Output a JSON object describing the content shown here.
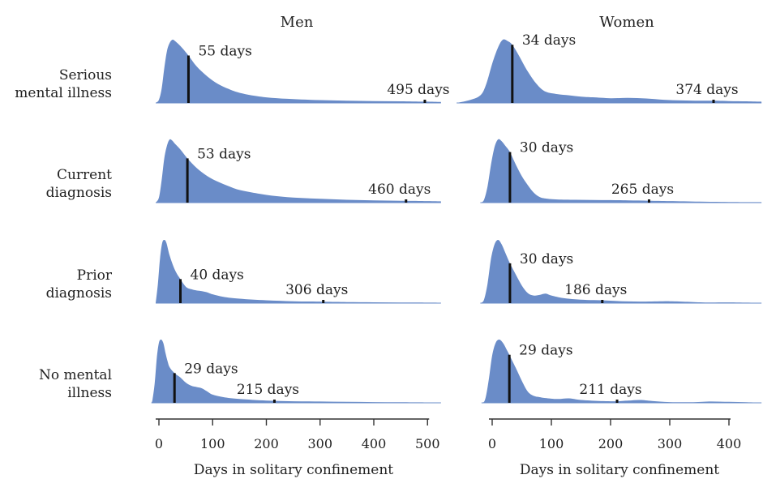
{
  "chart_data": {
    "type": "area",
    "rows": [
      "Serious\nmental illness",
      "Current\ndiagnosis",
      "Prior\ndiagnosis",
      "No mental\nillness"
    ],
    "fill_color": "#6a8cc8",
    "marker_color": "#111111",
    "panels": [
      {
        "title": "Men",
        "xlabel": "Days in solitary confinement",
        "xlim": [
          -14,
          525
        ],
        "ticks": [
          0,
          100,
          200,
          300,
          400,
          500
        ],
        "tick_labels": [
          "0",
          "100",
          "200",
          "300",
          "400",
          "500"
        ],
        "series": [
          {
            "row": "Serious\nmental illness",
            "median": 55,
            "median_label": "55 days",
            "tail": 495,
            "tail_label": "495 days",
            "density": [
              [
                -6,
                0
              ],
              [
                0,
                0.05
              ],
              [
                5,
                0.22
              ],
              [
                10,
                0.55
              ],
              [
                15,
                0.82
              ],
              [
                20,
                0.95
              ],
              [
                25,
                1.0
              ],
              [
                30,
                0.98
              ],
              [
                40,
                0.9
              ],
              [
                55,
                0.75
              ],
              [
                70,
                0.58
              ],
              [
                90,
                0.42
              ],
              [
                110,
                0.3
              ],
              [
                130,
                0.22
              ],
              [
                150,
                0.16
              ],
              [
                180,
                0.11
              ],
              [
                210,
                0.08
              ],
              [
                250,
                0.06
              ],
              [
                300,
                0.045
              ],
              [
                350,
                0.035
              ],
              [
                400,
                0.03
              ],
              [
                450,
                0.025
              ],
              [
                500,
                0.02
              ],
              [
                525,
                0.015
              ]
            ]
          },
          {
            "row": "Current\ndiagnosis",
            "median": 53,
            "median_label": "53 days",
            "tail": 460,
            "tail_label": "460 days",
            "density": [
              [
                -6,
                0
              ],
              [
                0,
                0.08
              ],
              [
                5,
                0.35
              ],
              [
                10,
                0.7
              ],
              [
                15,
                0.9
              ],
              [
                20,
                1.0
              ],
              [
                25,
                0.98
              ],
              [
                30,
                0.93
              ],
              [
                40,
                0.84
              ],
              [
                53,
                0.7
              ],
              [
                70,
                0.55
              ],
              [
                90,
                0.42
              ],
              [
                110,
                0.33
              ],
              [
                130,
                0.26
              ],
              [
                150,
                0.2
              ],
              [
                180,
                0.15
              ],
              [
                210,
                0.11
              ],
              [
                250,
                0.08
              ],
              [
                300,
                0.06
              ],
              [
                350,
                0.045
              ],
              [
                400,
                0.035
              ],
              [
                450,
                0.03
              ],
              [
                500,
                0.025
              ],
              [
                525,
                0.02
              ]
            ]
          },
          {
            "row": "Prior\ndiagnosis",
            "median": 40,
            "median_label": "40 days",
            "tail": 306,
            "tail_label": "306 days",
            "density": [
              [
                -6,
                0
              ],
              [
                -2,
                0.3
              ],
              [
                2,
                0.7
              ],
              [
                6,
                0.95
              ],
              [
                10,
                1.0
              ],
              [
                14,
                0.95
              ],
              [
                20,
                0.75
              ],
              [
                30,
                0.52
              ],
              [
                40,
                0.38
              ],
              [
                50,
                0.26
              ],
              [
                60,
                0.22
              ],
              [
                70,
                0.2
              ],
              [
                80,
                0.19
              ],
              [
                90,
                0.17
              ],
              [
                100,
                0.14
              ],
              [
                120,
                0.1
              ],
              [
                150,
                0.07
              ],
              [
                200,
                0.045
              ],
              [
                250,
                0.03
              ],
              [
                306,
                0.022
              ],
              [
                350,
                0.016
              ],
              [
                400,
                0.013
              ],
              [
                450,
                0.01
              ],
              [
                500,
                0.008
              ],
              [
                525,
                0.006
              ]
            ]
          },
          {
            "row": "No mental\nillness",
            "median": 29,
            "median_label": "29 days",
            "tail": 215,
            "tail_label": "215 days",
            "density": [
              [
                -14,
                0
              ],
              [
                -12,
                0.05
              ],
              [
                -8,
                0.3
              ],
              [
                -4,
                0.7
              ],
              [
                0,
                0.95
              ],
              [
                4,
                1.0
              ],
              [
                8,
                0.95
              ],
              [
                12,
                0.8
              ],
              [
                16,
                0.66
              ],
              [
                20,
                0.56
              ],
              [
                29,
                0.47
              ],
              [
                40,
                0.4
              ],
              [
                50,
                0.32
              ],
              [
                60,
                0.27
              ],
              [
                70,
                0.25
              ],
              [
                80,
                0.23
              ],
              [
                90,
                0.18
              ],
              [
                100,
                0.13
              ],
              [
                120,
                0.09
              ],
              [
                150,
                0.06
              ],
              [
                200,
                0.035
              ],
              [
                250,
                0.025
              ],
              [
                300,
                0.02
              ],
              [
                350,
                0.016
              ],
              [
                400,
                0.012
              ],
              [
                450,
                0.009
              ],
              [
                500,
                0.007
              ],
              [
                525,
                0.005
              ]
            ]
          }
        ]
      },
      {
        "title": "Women",
        "xlabel": "Days in solitary confinement",
        "xlim": [
          -65,
          455
        ],
        "ticks": [
          0,
          100,
          200,
          300,
          400
        ],
        "tick_labels": [
          "0",
          "100",
          "200",
          "300",
          "400"
        ],
        "series": [
          {
            "row": "Serious\nmental illness",
            "median": 34,
            "median_label": "34 days",
            "tail": 374,
            "tail_label": "374 days",
            "density": [
              [
                -60,
                0
              ],
              [
                -40,
                0.04
              ],
              [
                -20,
                0.12
              ],
              [
                -10,
                0.3
              ],
              [
                0,
                0.62
              ],
              [
                10,
                0.88
              ],
              [
                18,
                1.0
              ],
              [
                26,
                0.98
              ],
              [
                34,
                0.92
              ],
              [
                45,
                0.75
              ],
              [
                60,
                0.5
              ],
              [
                75,
                0.3
              ],
              [
                90,
                0.18
              ],
              [
                110,
                0.14
              ],
              [
                130,
                0.12
              ],
              [
                150,
                0.1
              ],
              [
                170,
                0.09
              ],
              [
                200,
                0.075
              ],
              [
                230,
                0.08
              ],
              [
                260,
                0.07
              ],
              [
                290,
                0.05
              ],
              [
                320,
                0.04
              ],
              [
                350,
                0.035
              ],
              [
                374,
                0.035
              ],
              [
                400,
                0.03
              ],
              [
                430,
                0.025
              ],
              [
                455,
                0.02
              ]
            ]
          },
          {
            "row": "Current\ndiagnosis",
            "median": 30,
            "median_label": "30 days",
            "tail": 265,
            "tail_label": "265 days",
            "density": [
              [
                -20,
                0
              ],
              [
                -14,
                0.04
              ],
              [
                -8,
                0.25
              ],
              [
                -2,
                0.6
              ],
              [
                4,
                0.88
              ],
              [
                10,
                1.0
              ],
              [
                16,
                0.97
              ],
              [
                22,
                0.9
              ],
              [
                30,
                0.8
              ],
              [
                40,
                0.6
              ],
              [
                50,
                0.42
              ],
              [
                60,
                0.28
              ],
              [
                70,
                0.16
              ],
              [
                80,
                0.09
              ],
              [
                90,
                0.065
              ],
              [
                110,
                0.05
              ],
              [
                140,
                0.045
              ],
              [
                170,
                0.042
              ],
              [
                200,
                0.04
              ],
              [
                230,
                0.035
              ],
              [
                265,
                0.03
              ],
              [
                300,
                0.025
              ],
              [
                350,
                0.015
              ],
              [
                400,
                0.01
              ],
              [
                455,
                0.008
              ]
            ]
          },
          {
            "row": "Prior\ndiagnosis",
            "median": 30,
            "median_label": "30 days",
            "tail": 186,
            "tail_label": "186 days",
            "density": [
              [
                -20,
                0
              ],
              [
                -14,
                0.05
              ],
              [
                -8,
                0.3
              ],
              [
                -2,
                0.7
              ],
              [
                4,
                0.93
              ],
              [
                10,
                1.0
              ],
              [
                16,
                0.93
              ],
              [
                22,
                0.8
              ],
              [
                30,
                0.63
              ],
              [
                40,
                0.45
              ],
              [
                50,
                0.28
              ],
              [
                60,
                0.16
              ],
              [
                70,
                0.12
              ],
              [
                80,
                0.13
              ],
              [
                90,
                0.15
              ],
              [
                100,
                0.12
              ],
              [
                120,
                0.08
              ],
              [
                140,
                0.06
              ],
              [
                160,
                0.05
              ],
              [
                186,
                0.045
              ],
              [
                220,
                0.03
              ],
              [
                260,
                0.025
              ],
              [
                300,
                0.03
              ],
              [
                330,
                0.02
              ],
              [
                360,
                0.01
              ],
              [
                400,
                0.012
              ],
              [
                430,
                0.008
              ],
              [
                455,
                0.005
              ]
            ]
          },
          {
            "row": "No mental\nillness",
            "median": 29,
            "median_label": "29 days",
            "tail": 211,
            "tail_label": "211 days",
            "density": [
              [
                -18,
                0
              ],
              [
                -12,
                0.05
              ],
              [
                -6,
                0.35
              ],
              [
                0,
                0.75
              ],
              [
                6,
                0.95
              ],
              [
                12,
                1.0
              ],
              [
                18,
                0.95
              ],
              [
                24,
                0.85
              ],
              [
                29,
                0.76
              ],
              [
                40,
                0.55
              ],
              [
                50,
                0.35
              ],
              [
                60,
                0.18
              ],
              [
                70,
                0.11
              ],
              [
                80,
                0.09
              ],
              [
                90,
                0.075
              ],
              [
                110,
                0.06
              ],
              [
                130,
                0.07
              ],
              [
                150,
                0.045
              ],
              [
                180,
                0.03
              ],
              [
                211,
                0.025
              ],
              [
                230,
                0.035
              ],
              [
                250,
                0.045
              ],
              [
                270,
                0.03
              ],
              [
                300,
                0.012
              ],
              [
                340,
                0.01
              ],
              [
                370,
                0.02
              ],
              [
                400,
                0.015
              ],
              [
                430,
                0.01
              ],
              [
                455,
                0.005
              ]
            ]
          }
        ]
      }
    ]
  }
}
